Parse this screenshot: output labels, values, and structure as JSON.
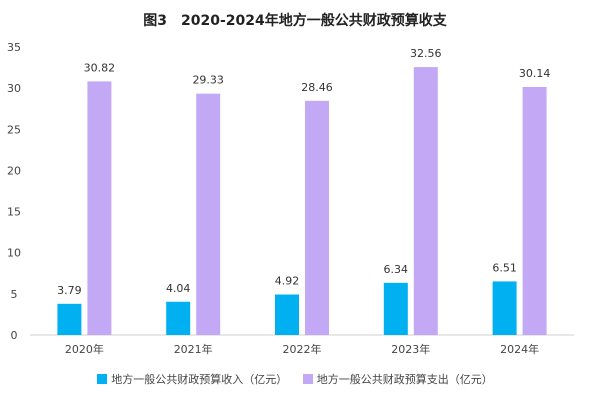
{
  "chart_data": {
    "type": "bar",
    "title": "图3　2020-2024年地方一般公共财政预算收支",
    "categories": [
      "2020年",
      "2021年",
      "2022年",
      "2023年",
      "2024年"
    ],
    "series": [
      {
        "name": "地方一般公共财政预算收入（亿元）",
        "color": "#00b0f0",
        "values": [
          3.79,
          4.04,
          4.92,
          6.34,
          6.51
        ]
      },
      {
        "name": "地方一般公共财政预算支出（亿元）",
        "color": "#c3a9f5",
        "values": [
          30.82,
          29.33,
          28.46,
          32.56,
          30.14
        ]
      }
    ],
    "ylim": [
      0,
      35
    ],
    "yticks": [
      0,
      5,
      10,
      15,
      20,
      25,
      30,
      35
    ],
    "grid": false,
    "legend_position": "bottom",
    "xlabel": "",
    "ylabel": ""
  }
}
